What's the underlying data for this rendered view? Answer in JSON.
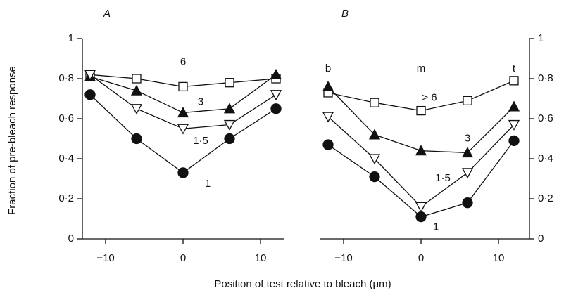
{
  "chart_data": [
    {
      "type": "line",
      "panel": "A",
      "ylabel": "Fraction of pre-bleach response",
      "xlabel": "Position of test relative to bleach (μm)",
      "x": [
        -12,
        -6,
        0,
        6,
        12
      ],
      "xlim": [
        -13,
        13
      ],
      "ylim": [
        0,
        1
      ],
      "yaxis_side": "left",
      "xticks": [
        {
          "value": -10,
          "label": "−10"
        },
        0,
        10
      ],
      "yticks": [
        0,
        {
          "value": 0.2,
          "label": "0·2"
        },
        {
          "value": 0.4,
          "label": "0·4"
        },
        {
          "value": 0.6,
          "label": "0·6"
        },
        {
          "value": 0.8,
          "label": "0·8"
        },
        1
      ],
      "series": [
        {
          "name": "6",
          "color": "#111111",
          "marker": "square-open",
          "values": [
            0.82,
            0.8,
            0.76,
            0.78,
            0.8
          ]
        },
        {
          "name": "3",
          "color": "#111111",
          "marker": "triangle-up-filled",
          "values": [
            0.81,
            0.74,
            0.63,
            0.65,
            0.82
          ]
        },
        {
          "name": "1·5",
          "color": "#111111",
          "marker": "triangle-down-open",
          "values": [
            0.82,
            0.65,
            0.55,
            0.57,
            0.72
          ]
        },
        {
          "name": "1",
          "color": "#111111",
          "marker": "circle-filled",
          "values": [
            0.72,
            0.5,
            0.33,
            0.5,
            0.65
          ]
        }
      ]
    },
    {
      "type": "line",
      "panel": "B",
      "annotations": [
        "b",
        "m",
        "t"
      ],
      "x": [
        -12,
        -6,
        0,
        6,
        12
      ],
      "xlim": [
        -13,
        14
      ],
      "ylim": [
        0,
        1
      ],
      "yaxis_side": "right",
      "xticks": [
        {
          "value": -10,
          "label": "−10"
        },
        0,
        10
      ],
      "yticks": [
        0,
        {
          "value": 0.2,
          "label": "0·2"
        },
        {
          "value": 0.4,
          "label": "0·4"
        },
        {
          "value": 0.6,
          "label": "0·6"
        },
        {
          "value": 0.8,
          "label": "0·8"
        },
        1
      ],
      "series": [
        {
          "name": "> 6",
          "color": "#111111",
          "marker": "square-open",
          "values": [
            0.73,
            0.68,
            0.64,
            0.69,
            0.79
          ]
        },
        {
          "name": "3",
          "color": "#111111",
          "marker": "triangle-up-filled",
          "values": [
            0.76,
            0.52,
            0.44,
            0.43,
            0.66
          ]
        },
        {
          "name": "1·5",
          "color": "#111111",
          "marker": "triangle-down-open",
          "values": [
            0.61,
            0.4,
            0.16,
            0.33,
            0.57
          ]
        },
        {
          "name": "1",
          "color": "#111111",
          "marker": "circle-filled",
          "values": [
            0.47,
            0.31,
            0.11,
            0.18,
            0.49
          ]
        }
      ]
    }
  ]
}
